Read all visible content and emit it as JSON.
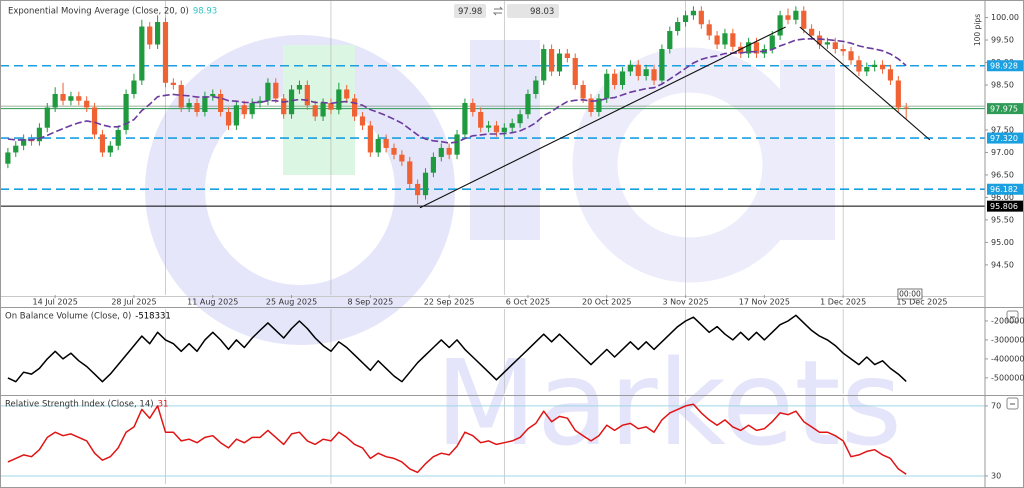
{
  "toolbar": {
    "bid": "97.98",
    "ask": "98.03"
  },
  "watermark": "Markets",
  "chart_data": [
    {
      "type": "candlestick",
      "y_unit_label": "100 pips",
      "cursor_time": "00:00",
      "colors": {
        "up": "#1f9a3f",
        "down": "#ee6233"
      },
      "x": [
        0,
        1,
        2,
        3,
        4,
        5,
        6,
        7,
        8,
        9,
        10,
        11,
        12,
        13,
        14,
        15,
        16,
        17,
        18,
        19,
        20,
        21,
        22,
        23,
        24,
        25,
        26,
        27,
        28,
        29,
        30,
        31,
        32,
        33,
        34,
        35,
        36,
        37,
        38,
        39,
        40,
        41,
        42,
        43,
        44,
        45,
        46,
        47,
        48,
        49,
        50,
        51,
        52,
        53,
        54,
        55,
        56,
        57,
        58,
        59,
        60,
        61,
        62,
        63,
        64,
        65,
        66,
        67,
        68,
        69,
        70,
        71,
        72,
        73,
        74,
        75,
        76,
        77,
        78,
        79,
        80,
        81,
        82,
        83,
        84,
        85,
        86,
        87,
        88,
        89,
        90,
        91,
        92,
        93,
        94,
        95,
        96,
        97,
        98,
        99,
        100,
        101,
        102,
        103,
        104,
        105,
        106,
        107,
        108,
        109,
        110,
        111,
        112,
        113,
        114
      ],
      "open": [
        96.75,
        97.0,
        97.15,
        97.3,
        97.25,
        97.55,
        98.0,
        98.3,
        98.15,
        98.25,
        98.15,
        98.0,
        97.4,
        97.0,
        97.15,
        97.5,
        98.3,
        98.6,
        99.8,
        99.4,
        99.9,
        98.55,
        98.5,
        98.0,
        98.1,
        97.9,
        98.25,
        98.3,
        97.9,
        97.6,
        98.05,
        97.85,
        98.1,
        98.15,
        98.55,
        98.2,
        97.85,
        98.4,
        98.5,
        98.05,
        97.8,
        98.1,
        97.95,
        98.4,
        98.2,
        97.8,
        97.6,
        97.0,
        97.3,
        97.1,
        96.95,
        96.8,
        96.3,
        96.05,
        96.55,
        96.9,
        97.1,
        96.95,
        97.4,
        98.1,
        97.9,
        97.55,
        97.6,
        97.45,
        97.55,
        97.65,
        97.85,
        98.3,
        98.6,
        99.3,
        98.8,
        99.2,
        99.1,
        98.5,
        98.2,
        97.9,
        98.2,
        98.75,
        98.5,
        98.8,
        98.95,
        98.7,
        98.85,
        98.6,
        99.3,
        99.7,
        99.9,
        100.05,
        100.15,
        99.85,
        99.6,
        99.4,
        99.65,
        99.35,
        99.2,
        99.45,
        99.2,
        99.3,
        99.6,
        100.05,
        99.95,
        100.15,
        99.75,
        99.6,
        99.4,
        99.45,
        99.3,
        99.25,
        99.05,
        98.8,
        98.9,
        98.95,
        98.85,
        98.6,
        98.0
      ],
      "high": [
        97.1,
        97.25,
        97.4,
        97.4,
        97.65,
        98.1,
        98.45,
        98.55,
        98.35,
        98.35,
        98.25,
        98.1,
        97.5,
        97.25,
        97.6,
        98.4,
        98.75,
        99.95,
        99.9,
        100.05,
        100.0,
        98.65,
        98.6,
        98.2,
        98.2,
        98.35,
        98.4,
        98.4,
        98.0,
        98.15,
        98.15,
        98.2,
        98.25,
        98.65,
        98.65,
        98.3,
        98.5,
        98.6,
        98.6,
        98.15,
        98.2,
        98.2,
        98.55,
        98.5,
        98.3,
        97.9,
        97.7,
        97.4,
        97.4,
        97.2,
        97.05,
        96.9,
        96.4,
        96.65,
        97.0,
        97.2,
        97.2,
        97.5,
        98.2,
        98.2,
        98.0,
        97.7,
        97.7,
        97.65,
        97.75,
        97.95,
        98.4,
        98.7,
        99.4,
        99.4,
        99.3,
        99.3,
        99.2,
        98.6,
        98.3,
        98.3,
        98.85,
        98.85,
        98.9,
        99.05,
        99.05,
        98.95,
        98.95,
        99.4,
        99.8,
        100.0,
        100.15,
        100.25,
        100.25,
        99.95,
        99.7,
        99.75,
        99.75,
        99.45,
        99.55,
        99.55,
        99.4,
        99.7,
        100.15,
        100.2,
        100.25,
        100.25,
        99.85,
        99.7,
        99.55,
        99.55,
        99.4,
        99.35,
        99.15,
        99.0,
        99.05,
        99.05,
        98.95,
        98.7,
        98.1
      ],
      "low": [
        96.65,
        96.9,
        97.05,
        97.15,
        97.15,
        97.45,
        97.9,
        98.05,
        98.05,
        98.05,
        97.9,
        97.3,
        96.9,
        96.9,
        97.05,
        97.4,
        98.2,
        98.5,
        99.3,
        99.3,
        98.45,
        98.4,
        97.9,
        97.9,
        97.8,
        97.8,
        98.15,
        97.8,
        97.5,
        97.5,
        97.75,
        97.75,
        98.0,
        98.05,
        98.1,
        97.75,
        97.75,
        98.3,
        97.95,
        97.7,
        97.7,
        97.85,
        97.85,
        98.1,
        97.7,
        97.5,
        96.9,
        96.9,
        97.0,
        96.85,
        96.7,
        96.2,
        95.85,
        95.95,
        96.45,
        96.8,
        96.85,
        96.85,
        97.3,
        97.8,
        97.45,
        97.45,
        97.35,
        97.35,
        97.45,
        97.55,
        97.75,
        98.2,
        98.5,
        98.7,
        98.7,
        99.0,
        98.4,
        98.1,
        97.8,
        97.8,
        98.1,
        98.4,
        98.4,
        98.7,
        98.6,
        98.6,
        98.5,
        98.5,
        99.2,
        99.6,
        99.8,
        99.95,
        99.75,
        99.5,
        99.3,
        99.3,
        99.25,
        99.1,
        99.1,
        99.1,
        99.1,
        99.2,
        99.5,
        99.85,
        99.85,
        99.65,
        99.5,
        99.3,
        99.3,
        99.2,
        99.15,
        98.95,
        98.7,
        98.7,
        98.8,
        98.75,
        98.5,
        97.9,
        97.75
      ],
      "close": [
        97.0,
        97.15,
        97.3,
        97.25,
        97.55,
        98.0,
        98.3,
        98.15,
        98.25,
        98.15,
        98.0,
        97.4,
        97.0,
        97.15,
        97.5,
        98.3,
        98.6,
        99.8,
        99.4,
        99.9,
        98.55,
        98.5,
        98.0,
        98.1,
        97.9,
        98.25,
        98.3,
        97.9,
        97.6,
        98.05,
        97.85,
        98.1,
        98.15,
        98.55,
        98.2,
        97.85,
        98.4,
        98.5,
        98.05,
        97.8,
        98.1,
        97.95,
        98.4,
        98.2,
        97.8,
        97.6,
        97.0,
        97.3,
        97.1,
        96.95,
        96.8,
        96.3,
        96.05,
        96.55,
        96.9,
        97.1,
        96.95,
        97.4,
        98.1,
        97.9,
        97.55,
        97.6,
        97.45,
        97.55,
        97.65,
        97.85,
        98.3,
        98.6,
        99.3,
        98.8,
        99.2,
        99.1,
        98.5,
        98.2,
        97.9,
        98.2,
        98.75,
        98.5,
        98.8,
        98.95,
        98.7,
        98.85,
        98.6,
        99.3,
        99.7,
        99.9,
        100.05,
        100.15,
        99.85,
        99.6,
        99.4,
        99.65,
        99.35,
        99.2,
        99.45,
        99.2,
        99.3,
        99.6,
        100.05,
        99.95,
        100.15,
        99.75,
        99.6,
        99.4,
        99.45,
        99.3,
        99.25,
        99.05,
        98.8,
        98.9,
        98.95,
        98.85,
        98.6,
        98.0,
        97.975
      ],
      "series": [
        {
          "name": "Exponential Moving Average (Close, 20, 0)",
          "color": "#6b3a9e",
          "value_color": "#36c4c4",
          "last_value": 98.93,
          "values": [
            97.3,
            97.28,
            97.28,
            97.28,
            97.31,
            97.38,
            97.46,
            97.53,
            97.6,
            97.66,
            97.7,
            97.67,
            97.61,
            97.57,
            97.57,
            97.64,
            97.73,
            97.93,
            98.07,
            98.24,
            98.27,
            98.29,
            98.27,
            98.26,
            98.23,
            98.23,
            98.24,
            98.21,
            98.15,
            98.14,
            98.11,
            98.11,
            98.11,
            98.15,
            98.15,
            98.12,
            98.15,
            98.18,
            98.16,
            98.11,
            98.11,
            98.09,
            98.12,
            98.13,
            98.1,
            98.05,
            97.95,
            97.89,
            97.82,
            97.74,
            97.65,
            97.52,
            97.39,
            97.3,
            97.26,
            97.24,
            97.21,
            97.23,
            97.31,
            97.37,
            97.39,
            97.41,
            97.41,
            97.42,
            97.44,
            97.48,
            97.56,
            97.66,
            97.82,
            97.91,
            98.03,
            98.13,
            98.16,
            98.17,
            98.14,
            98.15,
            98.2,
            98.22,
            98.28,
            98.34,
            98.38,
            98.42,
            98.44,
            98.52,
            98.63,
            98.75,
            98.87,
            98.99,
            99.07,
            99.12,
            99.15,
            99.2,
            99.21,
            99.21,
            99.24,
            99.24,
            99.25,
            99.29,
            99.37,
            99.43,
            99.5,
            99.52,
            99.53,
            99.52,
            99.51,
            99.49,
            99.47,
            99.43,
            99.37,
            99.33,
            99.3,
            99.26,
            99.19,
            99.08,
            98.93
          ]
        }
      ],
      "xlim": [
        -1,
        124
      ],
      "ylim": [
        93.83,
        100.39
      ],
      "xticks": [
        {
          "value": 6,
          "label": "14 Jul 2025"
        },
        {
          "value": 16,
          "label": "28 Jul 2025"
        },
        {
          "value": 26,
          "label": "11 Aug 2025"
        },
        {
          "value": 36,
          "label": "25 Aug 2025"
        },
        {
          "value": 46,
          "label": "8 Sep 2025"
        },
        {
          "value": 56,
          "label": "22 Sep 2025"
        },
        {
          "value": 66,
          "label": "6 Oct 2025"
        },
        {
          "value": 76,
          "label": "20 Oct 2025"
        },
        {
          "value": 86,
          "label": "3 Nov 2025"
        },
        {
          "value": 96,
          "label": "17 Nov 2025"
        },
        {
          "value": 106,
          "label": "1 Dec 2025"
        },
        {
          "value": 116,
          "label": "15 Dec 2025"
        }
      ],
      "xgrid": [
        20,
        41,
        63,
        86,
        106
      ],
      "yticks": [
        {
          "value": 94.5,
          "label": "94.50"
        },
        {
          "value": 95,
          "label": "95.00"
        },
        {
          "value": 95.5,
          "label": "95.50"
        },
        {
          "value": 96,
          "label": "96.00"
        },
        {
          "value": 96.5,
          "label": "96.50"
        },
        {
          "value": 97,
          "label": "97.00"
        },
        {
          "value": 97.5,
          "label": "97.50"
        },
        {
          "value": 98.5,
          "label": "98.50"
        },
        {
          "value": 99,
          "label": "99.00"
        },
        {
          "value": 99.5,
          "label": "99.50"
        },
        {
          "value": 100,
          "label": "100.00"
        }
      ],
      "levels": [
        {
          "value": 98.928,
          "color": "#1a9fe0",
          "style": "dashed"
        },
        {
          "value": 97.975,
          "color": "#2e9a55",
          "style": "solid"
        },
        {
          "value": 97.32,
          "label": "97.320",
          "color": "#1a9fe0",
          "style": "dashed"
        },
        {
          "value": 96.182,
          "color": "#1a9fe0",
          "style": "dashed"
        },
        {
          "value": 95.806,
          "color": "#000000",
          "style": "solid"
        }
      ],
      "trendlines": [
        {
          "x": [
            52.3,
            98.7
          ],
          "y": [
            95.77,
            99.79
          ]
        },
        {
          "x": [
            100.5,
            117
          ],
          "y": [
            99.79,
            97.28
          ]
        }
      ]
    },
    {
      "type": "line",
      "title": "On Balance Volume (Close, 0)",
      "last_value": -518331,
      "color": "#000000",
      "values": [
        -500000,
        -520000,
        -470000,
        -480000,
        -450000,
        -400000,
        -360000,
        -400000,
        -370000,
        -410000,
        -440000,
        -480000,
        -520000,
        -480000,
        -430000,
        -380000,
        -330000,
        -280000,
        -320000,
        -260000,
        -300000,
        -320000,
        -360000,
        -320000,
        -360000,
        -300000,
        -260000,
        -300000,
        -350000,
        -300000,
        -340000,
        -290000,
        -250000,
        -210000,
        -250000,
        -290000,
        -240000,
        -200000,
        -240000,
        -290000,
        -330000,
        -360000,
        -310000,
        -340000,
        -380000,
        -420000,
        -460000,
        -410000,
        -450000,
        -490000,
        -520000,
        -470000,
        -420000,
        -380000,
        -340000,
        -300000,
        -340000,
        -300000,
        -350000,
        -390000,
        -430000,
        -470000,
        -510000,
        -470000,
        -430000,
        -390000,
        -350000,
        -310000,
        -270000,
        -310000,
        -270000,
        -310000,
        -350000,
        -390000,
        -430000,
        -390000,
        -350000,
        -390000,
        -350000,
        -310000,
        -350000,
        -310000,
        -350000,
        -310000,
        -270000,
        -230000,
        -200000,
        -180000,
        -220000,
        -260000,
        -230000,
        -270000,
        -300000,
        -260000,
        -300000,
        -260000,
        -300000,
        -260000,
        -220000,
        -200000,
        -170000,
        -210000,
        -250000,
        -280000,
        -300000,
        -330000,
        -370000,
        -400000,
        -430000,
        -390000,
        -430000,
        -410000,
        -450000,
        -480000,
        -518331
      ],
      "ylim": [
        -585000,
        -137000
      ],
      "yticks": [
        -200000,
        -300000,
        -400000,
        -500000
      ]
    },
    {
      "type": "line",
      "title": "Relative Strength Index (Close, 14)",
      "last_value": 31,
      "color": "#e01414",
      "grid": true,
      "values": [
        38,
        40,
        42,
        41,
        45,
        52,
        55,
        53,
        54,
        52,
        50,
        43,
        39,
        41,
        46,
        55,
        58,
        68,
        63,
        70,
        55,
        55,
        50,
        51,
        49,
        52,
        53,
        49,
        46,
        51,
        49,
        52,
        52,
        56,
        52,
        48,
        54,
        55,
        50,
        48,
        51,
        50,
        55,
        52,
        48,
        46,
        40,
        43,
        41,
        40,
        38,
        34,
        32,
        37,
        41,
        43,
        42,
        47,
        55,
        53,
        49,
        50,
        48,
        49,
        50,
        52,
        57,
        60,
        67,
        61,
        64,
        63,
        56,
        53,
        50,
        53,
        59,
        56,
        59,
        60,
        57,
        58,
        55,
        62,
        66,
        68,
        70,
        71,
        66,
        62,
        59,
        62,
        58,
        56,
        59,
        56,
        57,
        61,
        66,
        65,
        67,
        61,
        58,
        55,
        55,
        53,
        50,
        41,
        42,
        44,
        45,
        42,
        40,
        34,
        31
      ],
      "ylim": [
        25.4,
        75.1
      ],
      "yticks": [
        70,
        30
      ]
    }
  ]
}
